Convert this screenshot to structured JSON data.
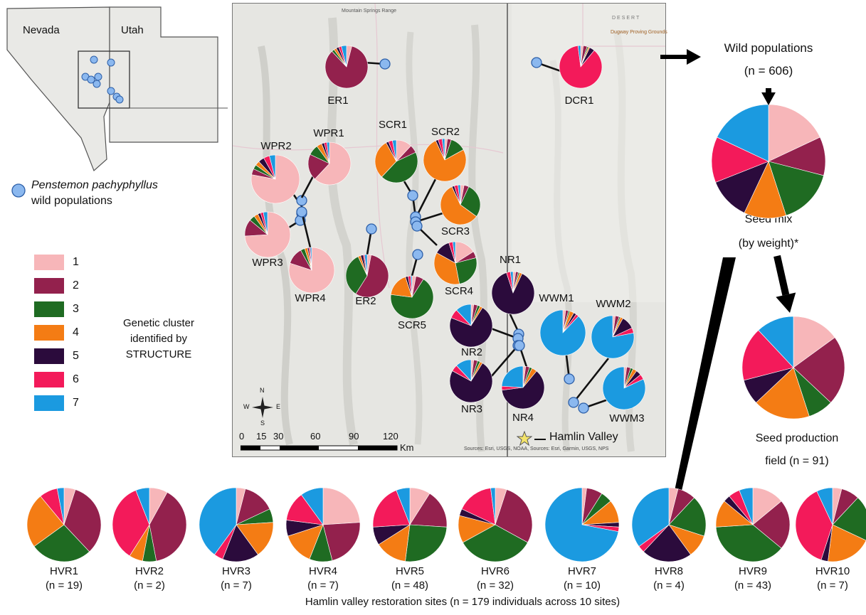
{
  "inset": {
    "nevada_label": "Nevada",
    "utah_label": "Utah",
    "species_label": "Penstemon pachyphyllus",
    "species_sub": "wild populations"
  },
  "legend": {
    "title_lines": [
      "Genetic cluster",
      "identified by",
      "STRUCTURE"
    ],
    "items": [
      {
        "label": "1",
        "color": "#f7b6b9"
      },
      {
        "label": "2",
        "color": "#93214d"
      },
      {
        "label": "3",
        "color": "#1f6b22"
      },
      {
        "label": "4",
        "color": "#f47c14"
      },
      {
        "label": "5",
        "color": "#2b0b3c"
      },
      {
        "label": "6",
        "color": "#f31a5a"
      },
      {
        "label": "7",
        "color": "#1b9ae0"
      }
    ]
  },
  "map": {
    "range_label": "Mountain Springs Range",
    "scale_ticks": [
      "0",
      "15",
      "30",
      "60",
      "90",
      "120"
    ],
    "scale_unit": "Km",
    "compass": [
      "N",
      "W",
      "E",
      "S"
    ],
    "hamlin_label": "Hamlin Valley",
    "attribution": "Sources: Esri, USGS, NOAA, Sources: Esri, Garmin, USGS, NPS",
    "desert_label": "DESERT",
    "proving_label": "Dugway Proving Grounds",
    "populations": [
      {
        "name": "ER1",
        "values": [
          4,
          84,
          2,
          2,
          2,
          2,
          4
        ]
      },
      {
        "name": "DCR1",
        "values": [
          2,
          3,
          1,
          1,
          4,
          87,
          2
        ]
      },
      {
        "name": "WPR2",
        "values": [
          78,
          4,
          3,
          3,
          4,
          4,
          4
        ]
      },
      {
        "name": "WPR1",
        "values": [
          62,
          20,
          8,
          4,
          2,
          2,
          2
        ]
      },
      {
        "name": "SCR1",
        "values": [
          12,
          6,
          44,
          30,
          2,
          3,
          3
        ]
      },
      {
        "name": "SCR2",
        "values": [
          2,
          3,
          12,
          76,
          2,
          3,
          2
        ]
      },
      {
        "name": "SCR3",
        "values": [
          3,
          4,
          28,
          58,
          2,
          3,
          2
        ]
      },
      {
        "name": "WPR3",
        "values": [
          74,
          12,
          4,
          3,
          2,
          2,
          3
        ]
      },
      {
        "name": "WPR4",
        "values": [
          80,
          12,
          3,
          2,
          1,
          1,
          1
        ]
      },
      {
        "name": "ER2",
        "values": [
          3,
          56,
          34,
          2,
          2,
          1,
          2
        ]
      },
      {
        "name": "SCR4",
        "values": [
          16,
          5,
          26,
          36,
          12,
          3,
          2
        ]
      },
      {
        "name": "SCR5",
        "values": [
          3,
          6,
          68,
          18,
          2,
          2,
          1
        ]
      },
      {
        "name": "NR1",
        "values": [
          2,
          2,
          1,
          2,
          88,
          3,
          2
        ]
      },
      {
        "name": "NR2",
        "values": [
          2,
          3,
          2,
          2,
          72,
          7,
          12
        ]
      },
      {
        "name": "NR3",
        "values": [
          2,
          3,
          2,
          2,
          74,
          5,
          12
        ]
      },
      {
        "name": "NR4",
        "values": [
          2,
          3,
          2,
          4,
          62,
          3,
          24
        ]
      },
      {
        "name": "WWM1",
        "values": [
          2,
          2,
          1,
          3,
          2,
          2,
          88
        ]
      },
      {
        "name": "WWM2",
        "values": [
          2,
          3,
          1,
          2,
          10,
          4,
          78
        ]
      },
      {
        "name": "WWM3",
        "values": [
          2,
          3,
          2,
          3,
          4,
          4,
          82
        ]
      }
    ]
  },
  "flow": {
    "wild_title": "Wild populations",
    "wild_n": "(n = 606)",
    "seed_mix": "Seed mix",
    "seed_mix_sub": "(by weight)*",
    "seed_mix_values": [
      18,
      11,
      16,
      12,
      12,
      13,
      18
    ],
    "seed_field": "Seed production",
    "seed_field_sub": "field (n = 91)",
    "seed_field_values": [
      15,
      22,
      8,
      18,
      8,
      17,
      12
    ]
  },
  "restoration": {
    "caption": "Hamlin valley  restoration sites (n = 179 individuals across 10 sites)",
    "sites": [
      {
        "name": "HVR1",
        "n": "(n = 19)",
        "values": [
          5,
          33,
          27,
          24,
          0,
          8,
          3
        ]
      },
      {
        "name": "HVR2",
        "n": "(n = 2)",
        "values": [
          8,
          39,
          6,
          6,
          0,
          35,
          6
        ]
      },
      {
        "name": "HVR3",
        "n": "(n = 7)",
        "values": [
          4,
          14,
          6,
          16,
          16,
          4,
          40
        ]
      },
      {
        "name": "HVR4",
        "n": "(n = 7)",
        "values": [
          24,
          22,
          10,
          14,
          7,
          13,
          10
        ]
      },
      {
        "name": "HVR5",
        "n": "(n = 48)",
        "values": [
          9,
          17,
          26,
          14,
          8,
          20,
          6
        ]
      },
      {
        "name": "HVR6",
        "n": "(n = 32)",
        "values": [
          5,
          28,
          34,
          12,
          3,
          16,
          2
        ]
      },
      {
        "name": "HVR7",
        "n": "(n = 10)",
        "values": [
          2,
          7,
          5,
          10,
          2,
          2,
          72
        ]
      },
      {
        "name": "HVR8",
        "n": "(n = 4)",
        "values": [
          4,
          8,
          18,
          10,
          22,
          3,
          35
        ]
      },
      {
        "name": "HVR9",
        "n": "(n = 43)",
        "values": [
          14,
          22,
          38,
          12,
          3,
          5,
          6
        ]
      },
      {
        "name": "HVR10",
        "n": "(n = 7)",
        "values": [
          4,
          8,
          20,
          20,
          3,
          38,
          7
        ]
      }
    ]
  }
}
